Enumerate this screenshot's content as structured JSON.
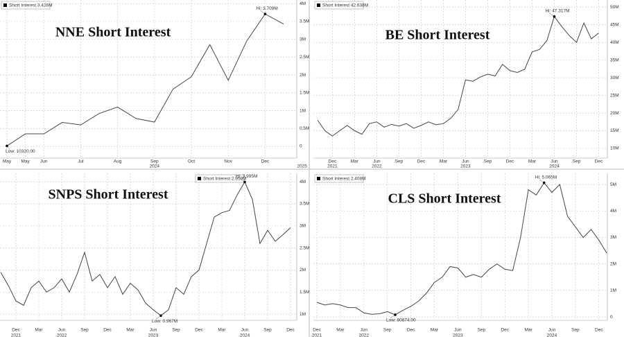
{
  "chart_data": [
    {
      "type": "line",
      "title": "NNE Short Interest",
      "categories": [
        "May",
        "May",
        "Jun",
        null,
        "Jul",
        null,
        "Aug",
        null,
        "Sep",
        null,
        "Oct",
        null,
        "Nov",
        null,
        "Dec",
        null,
        null
      ],
      "x_years": [
        null,
        null,
        null,
        null,
        null,
        null,
        null,
        null,
        "2024",
        null,
        null,
        null,
        null,
        null,
        null,
        null,
        "2025"
      ],
      "series": [
        {
          "name": "Short Interest 3.426M",
          "color": "#444444",
          "values": [
            0.01032,
            0.35,
            0.35,
            0.67,
            0.6,
            0.92,
            1.1,
            0.78,
            0.68,
            1.6,
            1.95,
            2.85,
            1.85,
            2.95,
            3.709,
            3.426,
            null
          ]
        }
      ],
      "ylim": [
        -0.33,
        4.1
      ],
      "yticks": [
        0,
        {
          "value": 0.5,
          "label": "0.5M"
        },
        {
          "value": 1,
          "label": "1M"
        },
        {
          "value": 1.5,
          "label": "1.5M"
        },
        {
          "value": 2,
          "label": "2M"
        },
        {
          "value": 2.5,
          "label": "2.5M"
        },
        {
          "value": 3,
          "label": "3M"
        },
        {
          "value": 3.5,
          "label": "3.5M"
        },
        {
          "value": 4,
          "label": "4M"
        }
      ],
      "grid": true,
      "legend": "upper left",
      "annotations": [
        {
          "label": "Hi: 3.709M",
          "point": 14
        },
        {
          "label": "Low: 10320.00",
          "point": 0
        }
      ]
    },
    {
      "type": "line",
      "title": "BE Short Interest",
      "categories": [
        null,
        null,
        "Dec",
        null,
        null,
        "Mar",
        null,
        null,
        "Jun",
        null,
        null,
        "Sep",
        null,
        null,
        "Dec",
        null,
        null,
        "Mar",
        null,
        null,
        "Jun",
        null,
        null,
        "Sep",
        null,
        null,
        "Dec",
        null,
        null,
        "Mar",
        null,
        null,
        "Jun",
        null,
        null,
        "Sep",
        null,
        null,
        "Dec"
      ],
      "x_years": [
        null,
        null,
        "2021",
        null,
        null,
        null,
        null,
        null,
        "2022",
        null,
        null,
        null,
        null,
        null,
        null,
        null,
        null,
        null,
        null,
        null,
        "2023",
        null,
        null,
        null,
        null,
        null,
        null,
        null,
        null,
        null,
        null,
        null,
        "2024",
        null,
        null,
        null,
        null,
        null,
        null
      ],
      "series": [
        {
          "name": "Short Interest 42.638M",
          "color": "#444444",
          "values": [
            18,
            15,
            13.5,
            15,
            16.5,
            15,
            14,
            17,
            17.5,
            16,
            16.8,
            16.3,
            17,
            15.7,
            16.5,
            17.5,
            16.7,
            17,
            18.5,
            21,
            29.4,
            29,
            30.2,
            31,
            30.5,
            33.8,
            32,
            31.5,
            32.4,
            37.3,
            38,
            40.5,
            47.317,
            44.5,
            42,
            40,
            45.5,
            41,
            42.638
          ]
        }
      ],
      "ylim": [
        7.25,
        52
      ],
      "yticks": [
        {
          "value": 10,
          "label": "10M"
        },
        {
          "value": 15,
          "label": "15M"
        },
        {
          "value": 20,
          "label": "20M"
        },
        {
          "value": 25,
          "label": "25M"
        },
        {
          "value": 30,
          "label": "30M"
        },
        {
          "value": 35,
          "label": "35M"
        },
        {
          "value": 40,
          "label": "40M"
        },
        {
          "value": 45,
          "label": "45M"
        },
        {
          "value": 50,
          "label": "50M"
        }
      ],
      "grid": true,
      "legend": "upper left",
      "annotations": [
        {
          "label": "Hi: 47.317M",
          "point": 32
        }
      ]
    },
    {
      "type": "line",
      "title": "SNPS Short Interest",
      "categories": [
        null,
        null,
        "Dec",
        null,
        null,
        "Mar",
        null,
        null,
        "Jun",
        null,
        null,
        "Sep",
        null,
        null,
        "Dec",
        null,
        null,
        "Mar",
        null,
        null,
        "Jun",
        null,
        null,
        "Sep",
        null,
        null,
        "Dec",
        null,
        null,
        "Mar",
        null,
        null,
        "Jun",
        null,
        null,
        "Sep",
        null,
        null,
        "Dec"
      ],
      "x_years": [
        null,
        null,
        "2021",
        null,
        null,
        null,
        null,
        null,
        "2022",
        null,
        null,
        null,
        null,
        null,
        null,
        null,
        null,
        null,
        null,
        null,
        "2023",
        null,
        null,
        null,
        null,
        null,
        null,
        null,
        null,
        null,
        null,
        null,
        "2024",
        null,
        null,
        null,
        null,
        null,
        null
      ],
      "series": [
        {
          "name": "Short Interest 2.959M",
          "color": "#444444",
          "values": [
            1.95,
            1.65,
            1.3,
            1.2,
            1.6,
            1.75,
            1.5,
            1.6,
            1.8,
            1.5,
            1.9,
            2.4,
            1.75,
            1.9,
            1.6,
            1.85,
            1.45,
            1.7,
            1.55,
            1.25,
            1.1,
            0.967,
            1.1,
            1.6,
            1.45,
            1.85,
            2.0,
            2.6,
            3.2,
            3.3,
            3.35,
            3.7,
            3.995,
            3.6,
            2.6,
            2.9,
            2.65,
            2.8,
            2.959
          ]
        }
      ],
      "ylim": [
        0.86,
        4.19
      ],
      "yticks": [
        {
          "value": 1,
          "label": "1M"
        },
        {
          "value": 1.5,
          "label": "1.5M"
        },
        {
          "value": 2,
          "label": "2M"
        },
        {
          "value": 2.5,
          "label": "2.5M"
        },
        {
          "value": 3,
          "label": "3M"
        },
        {
          "value": 3.5,
          "label": "3.5M"
        },
        {
          "value": 4,
          "label": "4M"
        }
      ],
      "grid": true,
      "legend": "upper right",
      "annotations": [
        {
          "label": "Hi: 3.995M",
          "point": 32
        },
        {
          "label": "Low: 0.967M",
          "point": 21
        }
      ]
    },
    {
      "type": "line",
      "title": "CLS Short Interest",
      "categories": [
        "Dec",
        null,
        null,
        "Mar",
        null,
        null,
        "Jun",
        null,
        null,
        "Sep",
        null,
        null,
        "Dec",
        null,
        null,
        "Mar",
        null,
        null,
        "Jun",
        null,
        null,
        "Sep",
        null,
        null,
        "Dec",
        null,
        null,
        "Mar",
        null,
        null,
        "Jun",
        null,
        null,
        "Sep",
        null,
        null,
        "Dec",
        null
      ],
      "x_years": [
        "2021",
        null,
        null,
        null,
        null,
        null,
        "2022",
        null,
        null,
        null,
        null,
        null,
        null,
        null,
        null,
        null,
        null,
        null,
        "2023",
        null,
        null,
        null,
        null,
        null,
        null,
        null,
        null,
        null,
        null,
        null,
        "2024",
        null,
        null,
        null,
        null,
        null,
        null,
        null
      ],
      "series": [
        {
          "name": "Short Interest 2.408M",
          "color": "#444444",
          "values": [
            0.55,
            0.45,
            0.5,
            0.45,
            0.35,
            0.35,
            0.15,
            0.1,
            0.12,
            0.2,
            0.080874,
            0.25,
            0.4,
            0.6,
            0.9,
            1.3,
            1.5,
            1.9,
            1.85,
            1.5,
            1.6,
            1.5,
            1.8,
            2.0,
            1.8,
            1.75,
            3.0,
            4.8,
            4.6,
            5.065,
            4.7,
            5.0,
            3.8,
            3.4,
            3.0,
            3.3,
            2.9,
            2.408
          ]
        }
      ],
      "ylim": [
        -0.13,
        5.42
      ],
      "yticks": [
        0,
        {
          "value": 1,
          "label": "1M"
        },
        {
          "value": 2,
          "label": "2M"
        },
        {
          "value": 3,
          "label": "3M"
        },
        {
          "value": 4,
          "label": "4M"
        },
        {
          "value": 5,
          "label": "5M"
        }
      ],
      "grid": true,
      "legend": "upper left",
      "annotations": [
        {
          "label": "Hi: 5.065M",
          "point": 29
        },
        {
          "label": "Low: 80874.00",
          "point": 10
        }
      ]
    }
  ]
}
